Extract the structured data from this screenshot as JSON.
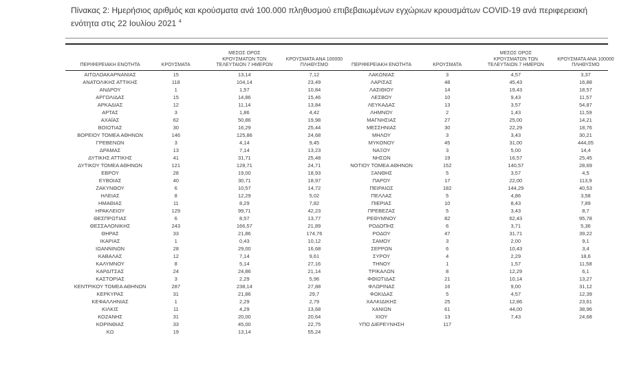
{
  "caption": {
    "text": "Πίνακας 2:  Ημερήσιος αριθμός και κρούσματα ανά 100.000 πληθυσμού επιβεβαιωμένων εγχώριων κρουσμάτων COVID-19 ανά περιφερειακή\nενότητα στις 22 Ιουλίου 2021 ",
    "footnote_marker": "4"
  },
  "colors": {
    "text": "#3b3b3b",
    "border": "#262626"
  },
  "table": {
    "headers": [
      "ΠΕΡΙΦΕΡΕΙΑΚΗ ΕΝΟΤΗΤΑ",
      "ΚΡΟΥΣΜΑΤΑ",
      "ΜΕΣΟΣ ΟΡΟΣ\nΚΡΟΥΣΜΑΤΩΝ ΤΩΝ\nΤΕΛΕΥΤΑΙΩΝ 7 ΗΜΕΡΩΝ",
      "ΚΡΟΥΣΜΑΤΑ ΑΝΑ 100000\nΠΛΗΘΥΣΜΟ"
    ],
    "left_rows": [
      [
        "ΑΙΤΩΛΟΑΚΑΡΝΑΝΙΑΣ",
        "15",
        "13,14",
        "7,12"
      ],
      [
        "ΑΝΑΤΟΛΙΚΗΣ ΑΤΤΙΚΗΣ",
        "118",
        "104,14",
        "23,49"
      ],
      [
        "ΑΝΔΡΟΥ",
        "1",
        "1,57",
        "10,84"
      ],
      [
        "ΑΡΓΟΛΙΔΑΣ",
        "15",
        "14,86",
        "15,46"
      ],
      [
        "ΑΡΚΑΔΙΑΣ",
        "12",
        "11,14",
        "13,84"
      ],
      [
        "ΑΡΤΑΣ",
        "3",
        "1,86",
        "4,42"
      ],
      [
        "ΑΧΑΪΑΣ",
        "62",
        "50,86",
        "19,98"
      ],
      [
        "ΒΟΙΩΤΙΑΣ",
        "30",
        "16,29",
        "25,44"
      ],
      [
        "ΒΟΡΕΙΟΥ ΤΟΜΕΑ ΑΘΗΝΩΝ",
        "146",
        "125,86",
        "24,68"
      ],
      [
        "ΓΡΕΒΕΝΩΝ",
        "3",
        "4,14",
        "9,45"
      ],
      [
        "ΔΡΑΜΑΣ",
        "13",
        "7,14",
        "13,23"
      ],
      [
        "ΔΥΤΙΚΗΣ ΑΤΤΙΚΗΣ",
        "41",
        "31,71",
        "25,48"
      ],
      [
        "ΔΥΤΙΚΟΥ ΤΟΜΕΑ ΑΘΗΝΩΝ",
        "121",
        "128,71",
        "24,71"
      ],
      [
        "ΕΒΡΟΥ",
        "28",
        "19,00",
        "18,93"
      ],
      [
        "ΕΥΒΟΙΑΣ",
        "40",
        "30,71",
        "18,97"
      ],
      [
        "ΖΑΚΥΝΘΟΥ",
        "6",
        "10,57",
        "14,72"
      ],
      [
        "ΗΛΕΙΑΣ",
        "8",
        "12,29",
        "5,02"
      ],
      [
        "ΗΜΑΘΙΑΣ",
        "11",
        "8,29",
        "7,82"
      ],
      [
        "ΗΡΑΚΛΕΙΟΥ",
        "129",
        "99,71",
        "42,23"
      ],
      [
        "ΘΕΣΠΡΩΤΙΑΣ",
        "6",
        "8,57",
        "13,77"
      ],
      [
        "ΘΕΣΣΑΛΟΝΙΚΗΣ",
        "243",
        "166,57",
        "21,89"
      ],
      [
        "ΘΗΡΑΣ",
        "33",
        "21,86",
        "174,76"
      ],
      [
        "ΙΚΑΡΙΑΣ",
        "1",
        "0,43",
        "10,12"
      ],
      [
        "ΙΩΑΝΝΙΝΩΝ",
        "28",
        "29,00",
        "16,68"
      ],
      [
        "ΚΑΒΑΛΑΣ",
        "12",
        "7,14",
        "9,61"
      ],
      [
        "ΚΑΛΥΜΝΟΥ",
        "8",
        "5,14",
        "27,16"
      ],
      [
        "ΚΑΡΔΙΤΣΑΣ",
        "24",
        "24,86",
        "21,14"
      ],
      [
        "ΚΑΣΤΟΡΙΑΣ",
        "3",
        "2,29",
        "5,96"
      ],
      [
        "ΚΕΝΤΡΙΚΟΥ ΤΟΜΕΑ ΑΘΗΝΩΝ",
        "287",
        "238,14",
        "27,88"
      ],
      [
        "ΚΕΡΚΥΡΑΣ",
        "31",
        "21,86",
        "29,7"
      ],
      [
        "ΚΕΦΑΛΛΗΝΙΑΣ",
        "1",
        "2,29",
        "2,79"
      ],
      [
        "ΚΙΛΚΙΣ",
        "11",
        "4,29",
        "13,68"
      ],
      [
        "ΚΟΖΑΝΗΣ",
        "31",
        "20,00",
        "20,64"
      ],
      [
        "ΚΟΡΙΝΘΙΑΣ",
        "33",
        "45,00",
        "22,75"
      ],
      [
        "ΚΩ",
        "19",
        "13,14",
        "55,24"
      ]
    ],
    "right_rows": [
      [
        "ΛΑΚΩΝΙΑΣ",
        "3",
        "4,57",
        "3,37"
      ],
      [
        "ΛΑΡΙΣΑΣ",
        "48",
        "45,43",
        "16,88"
      ],
      [
        "ΛΑΣΙΘΙΟΥ",
        "14",
        "19,43",
        "18,57"
      ],
      [
        "ΛΕΣΒΟΥ",
        "10",
        "9,43",
        "11,57"
      ],
      [
        "ΛΕΥΚΑΔΑΣ",
        "13",
        "3,57",
        "54,87"
      ],
      [
        "ΛΗΜΝΟΥ",
        "2",
        "1,43",
        "11,59"
      ],
      [
        "ΜΑΓΝΗΣΙΑΣ",
        "27",
        "25,00",
        "14,21"
      ],
      [
        "ΜΕΣΣΗΝΙΑΣ",
        "30",
        "22,29",
        "18,76"
      ],
      [
        "ΜΗΛΟΥ",
        "3",
        "3,43",
        "30,21"
      ],
      [
        "ΜΥΚΟΝΟΥ",
        "45",
        "31,00",
        "444,05"
      ],
      [
        "ΝΑΞΟΥ",
        "3",
        "5,00",
        "14,4"
      ],
      [
        "ΝΗΣΩΝ",
        "19",
        "16,57",
        "25,45"
      ],
      [
        "ΝΟΤΙΟΥ ΤΟΜΕΑ ΑΘΗΝΩΝ",
        "152",
        "140,57",
        "28,69"
      ],
      [
        "ΞΑΝΘΗΣ",
        "5",
        "3,57",
        "4,5"
      ],
      [
        "ΠΑΡΟΥ",
        "17",
        "22,00",
        "113,9"
      ],
      [
        "ΠΕΙΡΑΙΩΣ",
        "182",
        "144,29",
        "40,53"
      ],
      [
        "ΠΕΛΛΑΣ",
        "5",
        "4,86",
        "3,58"
      ],
      [
        "ΠΙΕΡΙΑΣ",
        "10",
        "8,43",
        "7,89"
      ],
      [
        "ΠΡΕΒΕΖΑΣ",
        "5",
        "3,43",
        "8,7"
      ],
      [
        "ΡΕΘΥΜΝΟΥ",
        "82",
        "62,43",
        "95,78"
      ],
      [
        "ΡΟΔΟΠΗΣ",
        "6",
        "3,71",
        "5,36"
      ],
      [
        "ΡΟΔΟΥ",
        "47",
        "31,71",
        "39,22"
      ],
      [
        "ΣΑΜΟΥ",
        "3",
        "2,00",
        "9,1"
      ],
      [
        "ΣΕΡΡΩΝ",
        "6",
        "10,43",
        "3,4"
      ],
      [
        "ΣΥΡΟΥ",
        "4",
        "2,29",
        "18,6"
      ],
      [
        "ΤΗΝΟΥ",
        "1",
        "1,57",
        "11,58"
      ],
      [
        "ΤΡΙΚΑΛΩΝ",
        "8",
        "12,29",
        "6,1"
      ],
      [
        "ΦΘΙΩΤΙΔΑΣ",
        "21",
        "10,14",
        "13,27"
      ],
      [
        "ΦΛΩΡΙΝΑΣ",
        "16",
        "9,00",
        "31,12"
      ],
      [
        "ΦΩΚΙΔΑΣ",
        "5",
        "4,57",
        "12,39"
      ],
      [
        "ΧΑΛΚΙΔΙΚΗΣ",
        "25",
        "12,86",
        "23,61"
      ],
      [
        "ΧΑΝΙΩΝ",
        "61",
        "44,00",
        "38,96"
      ],
      [
        "ΧΙΟΥ",
        "13",
        "7,43",
        "24,68"
      ],
      [
        "ΥΠΟ ΔΙΕΡΕΥΝΗΣΗ",
        "117",
        "",
        ""
      ]
    ],
    "italic_cells": [
      {
        "half": "right",
        "row": 28,
        "col": 1
      }
    ]
  }
}
